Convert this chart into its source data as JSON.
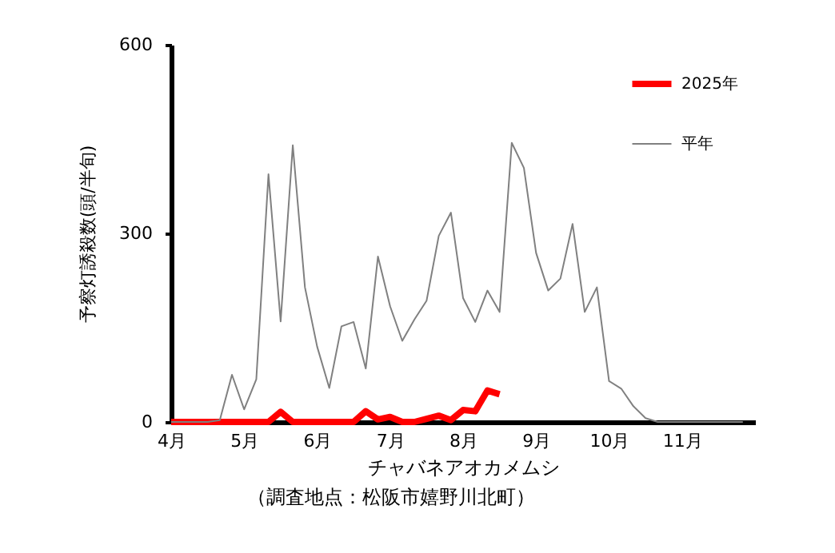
{
  "chart_data": {
    "type": "line",
    "ylabel": "予察灯誘殺数(頭/半旬)",
    "xlabel": "チャバネアオカメムシ",
    "annotations": [
      "（調査地点：松阪市嬉野川北町）"
    ],
    "categories": [
      "4月",
      null,
      null,
      null,
      null,
      null,
      "5月",
      null,
      null,
      null,
      null,
      null,
      "6月",
      null,
      null,
      null,
      null,
      null,
      "7月",
      null,
      null,
      null,
      null,
      null,
      "8月",
      null,
      null,
      null,
      null,
      null,
      "9月",
      null,
      null,
      null,
      null,
      null,
      "10月",
      null,
      null,
      null,
      null,
      null,
      "11月",
      null,
      null,
      null,
      null,
      null
    ],
    "ylim": [
      0,
      600
    ],
    "yticks": [
      0,
      300,
      600
    ],
    "grid": false,
    "legend": "top right",
    "marker": "none",
    "line_style": "solid",
    "series": [
      {
        "name": "2025年",
        "color": "#ff0000",
        "values": [
          0,
          0,
          0,
          0,
          0,
          0,
          0,
          0,
          0,
          16,
          0,
          0,
          0,
          0,
          0,
          0,
          17,
          4,
          8,
          0,
          0,
          5,
          10,
          3,
          19,
          17,
          50,
          44,
          null,
          null,
          null,
          null,
          null,
          null,
          null,
          null,
          null,
          null,
          null,
          null,
          null,
          null,
          null,
          null,
          null,
          null,
          null,
          null
        ]
      },
      {
        "name": "平年",
        "color": "#808080",
        "values": [
          0,
          0,
          0,
          0,
          3,
          75,
          20,
          68,
          394,
          160,
          440,
          214,
          120,
          54,
          152,
          159,
          85,
          263,
          184,
          129,
          163,
          193,
          296,
          333,
          197,
          159,
          209,
          175,
          444,
          404,
          269,
          209,
          228,
          315,
          175,
          214,
          65,
          53,
          25,
          6,
          0,
          0,
          0,
          0,
          0,
          0,
          0,
          0
        ]
      }
    ]
  }
}
